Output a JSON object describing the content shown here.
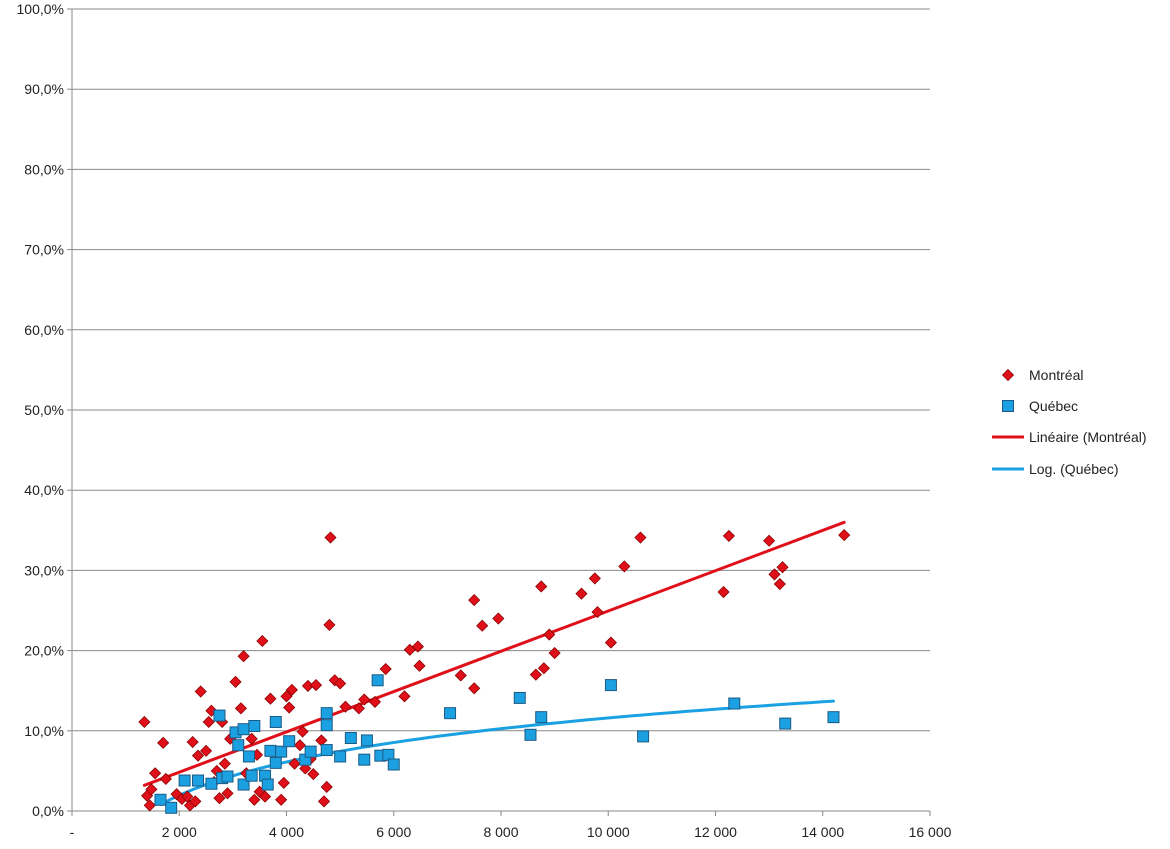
{
  "chart_data": {
    "type": "scatter",
    "xlim": [
      0,
      16000
    ],
    "ylim": [
      0,
      100
    ],
    "x_tick_labels": [
      "-",
      "2 000",
      "4 000",
      "6 000",
      "8 000",
      "10 000",
      "12 000",
      "14 000",
      "16 000"
    ],
    "x_tick_values": [
      0,
      2000,
      4000,
      6000,
      8000,
      10000,
      12000,
      14000,
      16000
    ],
    "y_tick_labels": [
      "0,0%",
      "10,0%",
      "20,0%",
      "30,0%",
      "40,0%",
      "50,0%",
      "60,0%",
      "70,0%",
      "80,0%",
      "90,0%",
      "100,0%"
    ],
    "y_tick_values": [
      0,
      10,
      20,
      30,
      40,
      50,
      60,
      70,
      80,
      90,
      100
    ],
    "grid": "horizontal",
    "legend_position": "right",
    "series": [
      {
        "name": "Montréal",
        "marker": "diamond",
        "color": "#e0101a",
        "points": [
          [
            1350,
            11.1
          ],
          [
            1400,
            1.9
          ],
          [
            1450,
            0.7
          ],
          [
            1480,
            2.7
          ],
          [
            1550,
            4.7
          ],
          [
            1700,
            8.5
          ],
          [
            1750,
            4.0
          ],
          [
            1950,
            2.1
          ],
          [
            2050,
            1.5
          ],
          [
            2150,
            1.8
          ],
          [
            2200,
            0.7
          ],
          [
            2250,
            8.6
          ],
          [
            2300,
            1.2
          ],
          [
            2350,
            6.9
          ],
          [
            2400,
            14.9
          ],
          [
            2500,
            7.5
          ],
          [
            2550,
            11.1
          ],
          [
            2600,
            12.5
          ],
          [
            2650,
            3.6
          ],
          [
            2700,
            5.0
          ],
          [
            2750,
            1.6
          ],
          [
            2800,
            11.1
          ],
          [
            2850,
            5.9
          ],
          [
            2900,
            2.2
          ],
          [
            2950,
            9.0
          ],
          [
            3050,
            16.1
          ],
          [
            3150,
            12.8
          ],
          [
            3200,
            19.3
          ],
          [
            3250,
            4.7
          ],
          [
            3350,
            9.0
          ],
          [
            3400,
            1.4
          ],
          [
            3450,
            7.0
          ],
          [
            3500,
            2.4
          ],
          [
            3550,
            21.2
          ],
          [
            3600,
            1.8
          ],
          [
            3700,
            14.0
          ],
          [
            3850,
            7.3
          ],
          [
            3900,
            1.4
          ],
          [
            3950,
            3.5
          ],
          [
            4000,
            14.3
          ],
          [
            4050,
            12.9
          ],
          [
            4100,
            15.1
          ],
          [
            4150,
            5.9
          ],
          [
            4250,
            8.2
          ],
          [
            4300,
            9.9
          ],
          [
            4350,
            5.3
          ],
          [
            4400,
            15.6
          ],
          [
            4450,
            6.5
          ],
          [
            4500,
            4.6
          ],
          [
            4550,
            15.7
          ],
          [
            4650,
            8.8
          ],
          [
            4700,
            1.2
          ],
          [
            4750,
            3.0
          ],
          [
            4800,
            23.2
          ],
          [
            4820,
            34.1
          ],
          [
            4900,
            16.3
          ],
          [
            5000,
            15.9
          ],
          [
            5100,
            13.0
          ],
          [
            5350,
            12.8
          ],
          [
            5450,
            13.9
          ],
          [
            5650,
            13.6
          ],
          [
            5850,
            17.7
          ],
          [
            6200,
            14.3
          ],
          [
            6300,
            20.1
          ],
          [
            6450,
            20.5
          ],
          [
            6480,
            18.1
          ],
          [
            7250,
            16.9
          ],
          [
            7500,
            15.3
          ],
          [
            7500,
            26.3
          ],
          [
            7650,
            23.1
          ],
          [
            7950,
            24.0
          ],
          [
            8650,
            17.0
          ],
          [
            8750,
            28.0
          ],
          [
            8800,
            17.8
          ],
          [
            8900,
            22.0
          ],
          [
            9000,
            19.7
          ],
          [
            9500,
            27.1
          ],
          [
            9750,
            29.0
          ],
          [
            9800,
            24.8
          ],
          [
            10050,
            21.0
          ],
          [
            10300,
            30.5
          ],
          [
            10600,
            34.1
          ],
          [
            12150,
            27.3
          ],
          [
            12250,
            34.3
          ],
          [
            13000,
            33.7
          ],
          [
            13100,
            29.5
          ],
          [
            13200,
            28.3
          ],
          [
            13250,
            30.4
          ],
          [
            14400,
            34.4
          ]
        ]
      },
      {
        "name": "Québec",
        "marker": "square",
        "color": "#1ba1e2",
        "points": [
          [
            1650,
            1.4
          ],
          [
            1850,
            0.4
          ],
          [
            2100,
            3.8
          ],
          [
            2350,
            3.8
          ],
          [
            2600,
            3.4
          ],
          [
            2750,
            11.9
          ],
          [
            2800,
            4.1
          ],
          [
            2900,
            4.3
          ],
          [
            3050,
            9.8
          ],
          [
            3100,
            8.2
          ],
          [
            3200,
            3.3
          ],
          [
            3200,
            10.2
          ],
          [
            3300,
            6.8
          ],
          [
            3350,
            4.4
          ],
          [
            3400,
            10.6
          ],
          [
            3600,
            4.4
          ],
          [
            3650,
            3.3
          ],
          [
            3700,
            7.5
          ],
          [
            3800,
            6.0
          ],
          [
            3800,
            11.1
          ],
          [
            3900,
            7.4
          ],
          [
            4050,
            8.7
          ],
          [
            4350,
            6.4
          ],
          [
            4450,
            7.4
          ],
          [
            4750,
            7.6
          ],
          [
            4750,
            10.7
          ],
          [
            4750,
            12.2
          ],
          [
            5000,
            6.8
          ],
          [
            5200,
            9.1
          ],
          [
            5450,
            6.4
          ],
          [
            5500,
            8.8
          ],
          [
            5700,
            16.3
          ],
          [
            5750,
            6.9
          ],
          [
            5900,
            7.0
          ],
          [
            6000,
            5.8
          ],
          [
            7050,
            12.2
          ],
          [
            8350,
            14.1
          ],
          [
            8550,
            9.5
          ],
          [
            8750,
            11.7
          ],
          [
            10050,
            15.7
          ],
          [
            10650,
            9.3
          ],
          [
            12350,
            13.4
          ],
          [
            13300,
            10.9
          ],
          [
            14200,
            11.7
          ]
        ]
      }
    ],
    "trendlines": [
      {
        "name": "Linéaire (Montréal)",
        "type": "linear",
        "color": "#e0101a",
        "x_range": [
          1350,
          14400
        ],
        "y_at_ends": [
          3.2,
          36.0
        ]
      },
      {
        "name": "Log. (Québec)",
        "type": "log",
        "color": "#1ba1e2",
        "x_range": [
          1650,
          14200
        ],
        "a": 5.99,
        "b": -43.57
      }
    ]
  }
}
